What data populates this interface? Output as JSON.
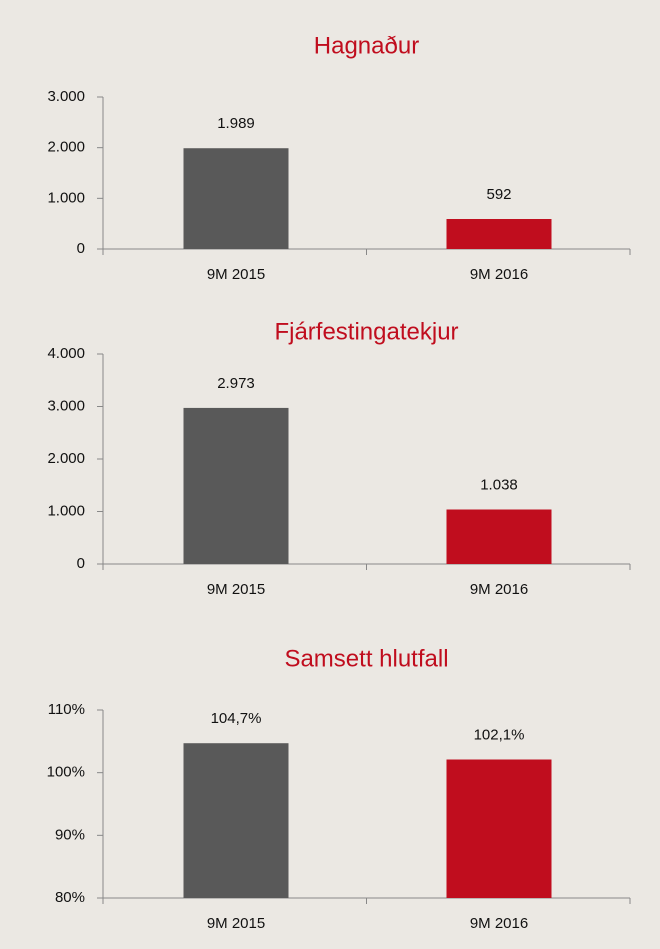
{
  "chart_data": [
    {
      "type": "bar",
      "title": "Hagnaður",
      "categories": [
        "9M 2015",
        "9M 2016"
      ],
      "values": [
        1989,
        592
      ],
      "value_labels": [
        "1.989",
        "592"
      ],
      "colors": [
        "#595959",
        "#c00d1e"
      ],
      "ylim": [
        0,
        3000
      ],
      "yticks": [
        0,
        {
          "value": 1000,
          "label": "1.000"
        },
        {
          "value": 2000,
          "label": "2.000"
        },
        {
          "value": 3000,
          "label": "3.000"
        }
      ]
    },
    {
      "type": "bar",
      "title": "Fjárfestingatekjur",
      "categories": [
        "9M 2015",
        "9M 2016"
      ],
      "values": [
        2973,
        1038
      ],
      "value_labels": [
        "2.973",
        "1.038"
      ],
      "colors": [
        "#595959",
        "#c00d1e"
      ],
      "ylim": [
        0,
        4000
      ],
      "yticks": [
        0,
        {
          "value": 1000,
          "label": "1.000"
        },
        {
          "value": 2000,
          "label": "2.000"
        },
        {
          "value": 3000,
          "label": "3.000"
        },
        {
          "value": 4000,
          "label": "4.000"
        }
      ]
    },
    {
      "type": "bar",
      "title": "Samsett hlutfall",
      "categories": [
        "9M 2015",
        "9M 2016"
      ],
      "values": [
        104.7,
        102.1
      ],
      "value_labels": [
        "104,7%",
        "102,1%"
      ],
      "colors": [
        "#595959",
        "#c00d1e"
      ],
      "ylim": [
        80,
        110
      ],
      "yticks": [
        {
          "value": 80,
          "label": "80%"
        },
        {
          "value": 90,
          "label": "90%"
        },
        {
          "value": 100,
          "label": "100%"
        },
        {
          "value": 110,
          "label": "110%"
        }
      ]
    }
  ]
}
